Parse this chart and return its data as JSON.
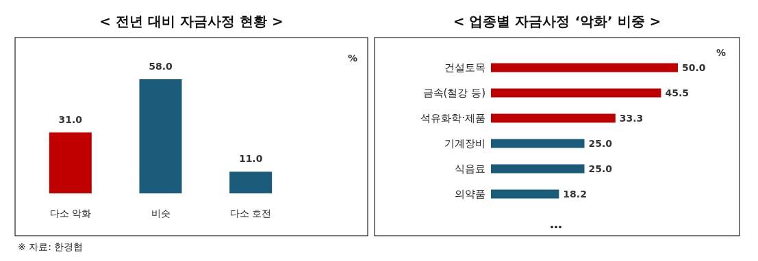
{
  "chart_data": [
    {
      "type": "bar",
      "title": "< 전년 대비 자금사정 현황 >",
      "ylabel": "%",
      "categories": [
        "다소 악화",
        "비슷",
        "다소 호전"
      ],
      "values": [
        31.0,
        58.0,
        11.0
      ],
      "value_labels": [
        "31.0",
        "58.0",
        "11.0"
      ],
      "colors": [
        "#c00000",
        "#1b5b7a",
        "#1b5b7a"
      ],
      "annotations": [
        "※ 자료: 한경협"
      ]
    },
    {
      "type": "bar",
      "orientation": "horizontal",
      "title": "< 업종별 자금사정 ‘악화’ 비중 >",
      "xlabel": "%",
      "categories": [
        "건설토목",
        "금속(철강 등)",
        "석유화학·제품",
        "기계장비",
        "식음료",
        "의약품"
      ],
      "values": [
        50.0,
        45.5,
        33.3,
        25.0,
        25.0,
        18.2
      ],
      "value_labels": [
        "50.0",
        "45.5",
        "33.3",
        "25.0",
        "25.0",
        "18.2"
      ],
      "colors": [
        "#c00000",
        "#c00000",
        "#c00000",
        "#1b5b7a",
        "#1b5b7a",
        "#1b5b7a"
      ],
      "annotations": [
        "…"
      ]
    }
  ]
}
